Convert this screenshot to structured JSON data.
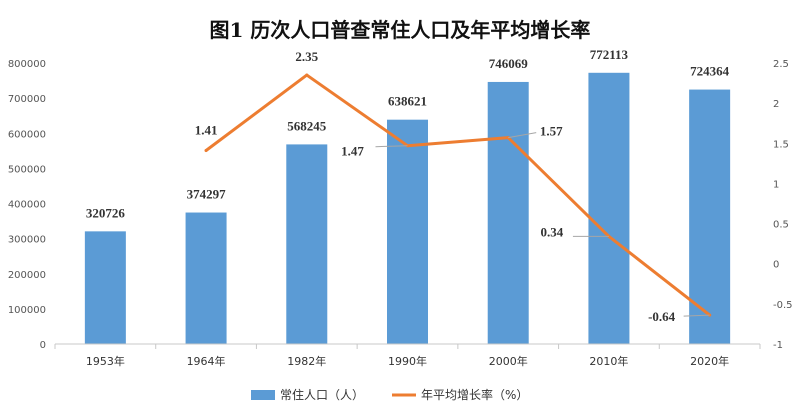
{
  "chart_data": {
    "type": "bar",
    "title": "图1  历次人口普查常住人口及年平均增长率",
    "categories": [
      "1953年",
      "1964年",
      "1982年",
      "1990年",
      "2000年",
      "2010年",
      "2020年"
    ],
    "series": [
      {
        "name": "常住人口（人）",
        "type": "bar",
        "axis": "left",
        "color": "#5b9bd5",
        "values": [
          320726,
          374297,
          568245,
          638621,
          746069,
          772113,
          724364
        ],
        "labels": [
          "320726",
          "374297",
          "568245",
          "638621",
          "746069",
          "772113",
          "724364"
        ]
      },
      {
        "name": "年平均增长率（%）",
        "type": "line",
        "axis": "right",
        "color": "#ed7d31",
        "values": [
          null,
          1.41,
          2.35,
          1.47,
          1.57,
          0.34,
          -0.64
        ],
        "labels": [
          "",
          "1.41",
          "2.35",
          "1.47",
          "1.57",
          "0.34",
          "-0.64"
        ]
      }
    ],
    "y_left": {
      "ylim": [
        0,
        800000
      ],
      "ticks": [
        "0",
        "100000",
        "200000",
        "300000",
        "400000",
        "500000",
        "600000",
        "700000",
        "800000"
      ]
    },
    "y_right": {
      "ylim": [
        -1,
        2.5
      ],
      "ticks": [
        "-1",
        "-0.5",
        "0",
        "0.5",
        "1",
        "1.5",
        "2",
        "2.5"
      ]
    },
    "grid": false,
    "legend": "bottom"
  }
}
